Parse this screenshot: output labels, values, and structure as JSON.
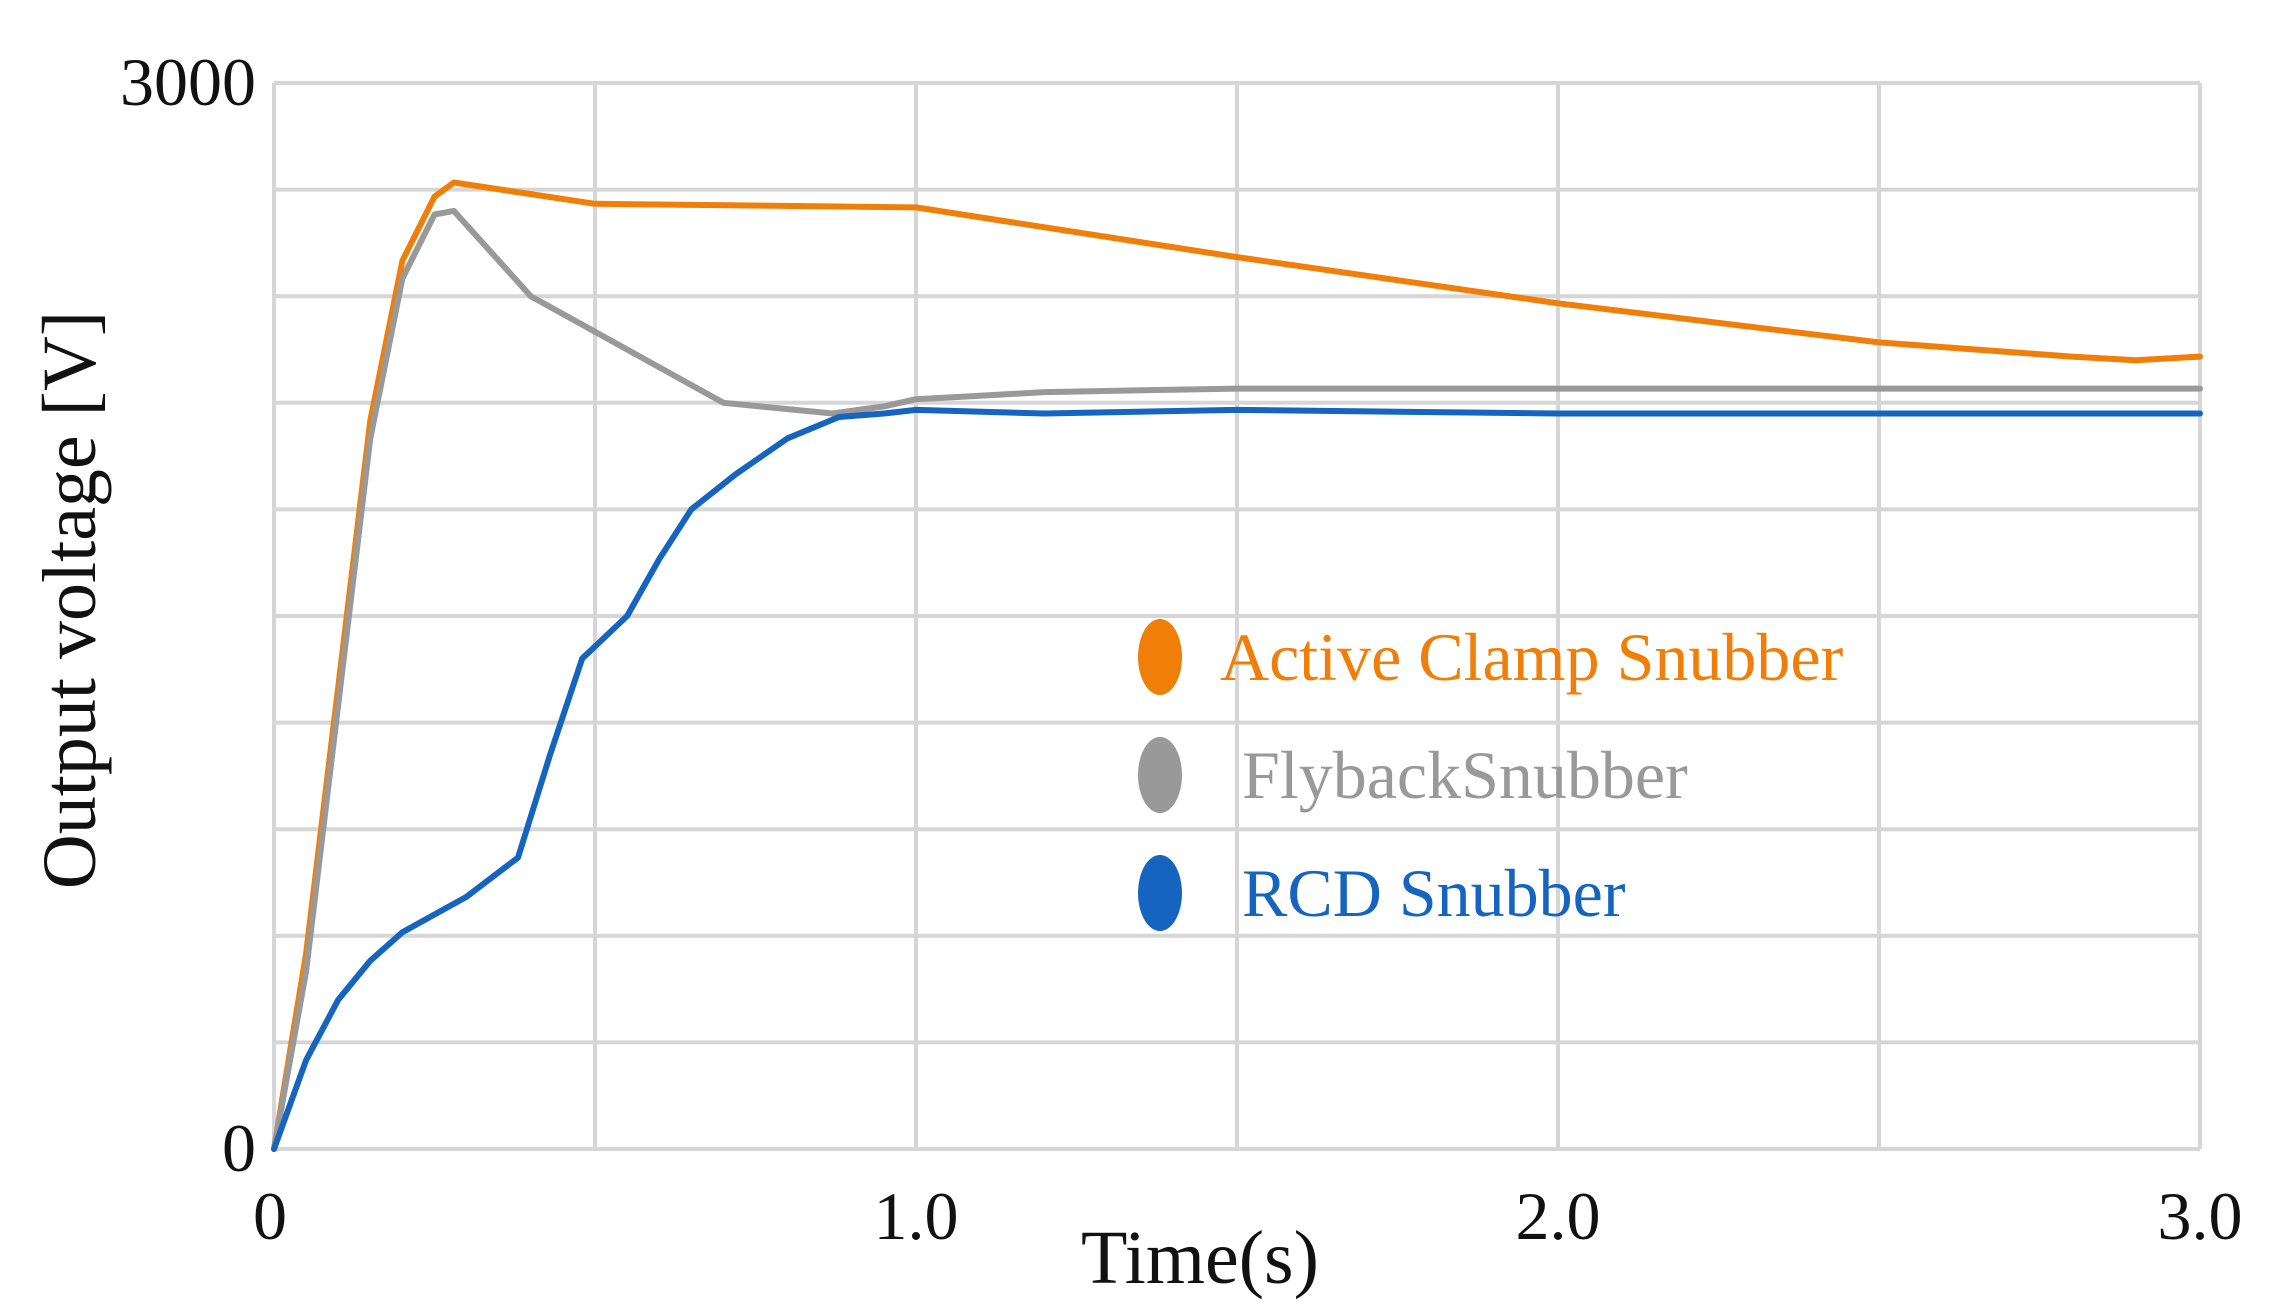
{
  "chart_data": {
    "type": "line",
    "title": "",
    "xlabel": "Time(s)",
    "ylabel": "Output voltage [V]",
    "xlim": [
      0,
      3.0
    ],
    "ylim": [
      0,
      3000
    ],
    "x_ticks": [
      0,
      0.5,
      1.0,
      1.5,
      2.0,
      2.5,
      3.0
    ],
    "x_tick_labels": [
      {
        "x": 0,
        "label": "0"
      },
      {
        "x": 1.0,
        "label": "1.0"
      },
      {
        "x": 2.0,
        "label": "2.0"
      },
      {
        "x": 3.0,
        "label": "3.0"
      }
    ],
    "y_ticks": [
      0,
      300,
      600,
      900,
      1200,
      1500,
      1800,
      2100,
      2400,
      2700,
      3000
    ],
    "y_tick_labels": [
      {
        "y": 0,
        "label": "0"
      },
      {
        "y": 3000,
        "label": "3000"
      }
    ],
    "grid": true,
    "legend_position": "center-right",
    "series": [
      {
        "name": "Active Clamp Snubber",
        "color": "#F07F09",
        "points": [
          [
            0,
            0
          ],
          [
            0.05,
            550
          ],
          [
            0.1,
            1300
          ],
          [
            0.15,
            2050
          ],
          [
            0.2,
            2500
          ],
          [
            0.25,
            2680
          ],
          [
            0.28,
            2720
          ],
          [
            0.5,
            2660
          ],
          [
            1.0,
            2650
          ],
          [
            1.5,
            2510
          ],
          [
            2.0,
            2380
          ],
          [
            2.5,
            2270
          ],
          [
            2.8,
            2230
          ],
          [
            2.9,
            2220
          ],
          [
            3.0,
            2230
          ]
        ]
      },
      {
        "name": "FlybackSnubber",
        "color": "#999999",
        "points": [
          [
            0,
            0
          ],
          [
            0.05,
            500
          ],
          [
            0.1,
            1250
          ],
          [
            0.15,
            2000
          ],
          [
            0.2,
            2450
          ],
          [
            0.25,
            2630
          ],
          [
            0.28,
            2640
          ],
          [
            0.4,
            2400
          ],
          [
            0.55,
            2250
          ],
          [
            0.7,
            2100
          ],
          [
            0.87,
            2070
          ],
          [
            0.95,
            2090
          ],
          [
            1.0,
            2110
          ],
          [
            1.1,
            2120
          ],
          [
            1.2,
            2130
          ],
          [
            1.5,
            2140
          ],
          [
            2.0,
            2140
          ],
          [
            3.0,
            2140
          ]
        ]
      },
      {
        "name": "RCD Snubber",
        "color": "#1565C0",
        "points": [
          [
            0,
            0
          ],
          [
            0.05,
            250
          ],
          [
            0.1,
            420
          ],
          [
            0.15,
            530
          ],
          [
            0.2,
            610
          ],
          [
            0.3,
            710
          ],
          [
            0.38,
            820
          ],
          [
            0.43,
            1110
          ],
          [
            0.48,
            1380
          ],
          [
            0.55,
            1500
          ],
          [
            0.6,
            1660
          ],
          [
            0.65,
            1800
          ],
          [
            0.72,
            1900
          ],
          [
            0.8,
            2000
          ],
          [
            0.88,
            2060
          ],
          [
            0.95,
            2070
          ],
          [
            1.0,
            2080
          ],
          [
            1.2,
            2070
          ],
          [
            1.5,
            2080
          ],
          [
            2.0,
            2070
          ],
          [
            3.0,
            2070
          ]
        ]
      }
    ]
  }
}
